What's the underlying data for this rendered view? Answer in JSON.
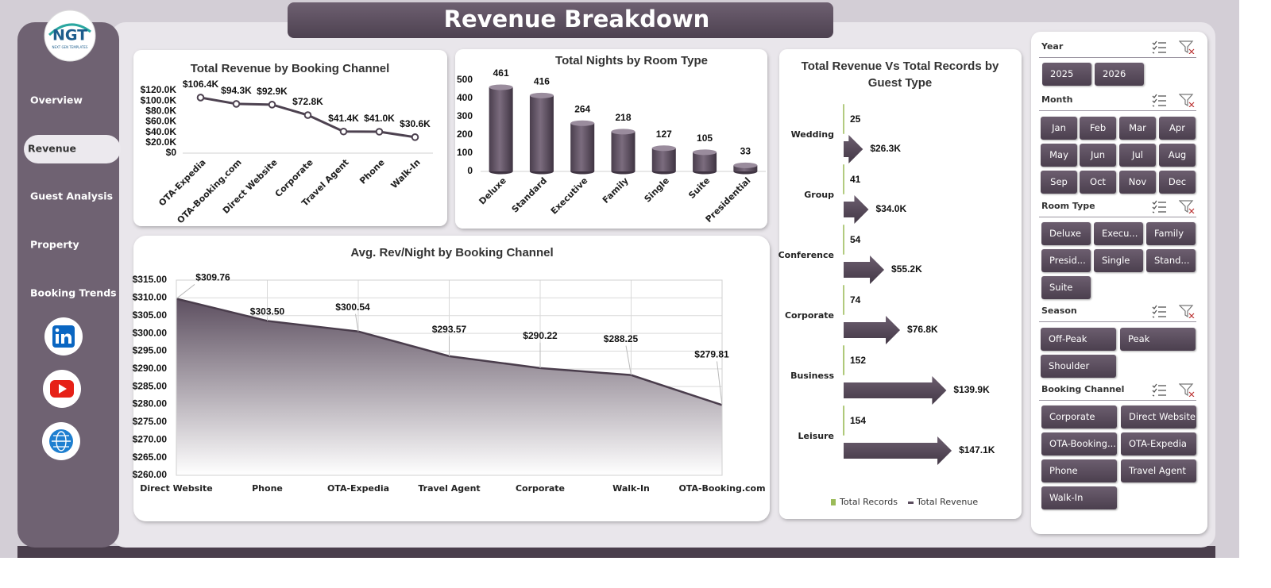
{
  "header": {
    "title": "Revenue Breakdown"
  },
  "logo": {
    "text": "NGT",
    "tagline": "NEXT GEN TEMPLATES"
  },
  "nav": [
    "Overview",
    "Revenue",
    "Guest Analysis",
    "Property",
    "Booking Trends"
  ],
  "chart_data": [
    {
      "type": "line",
      "title": "Total Revenue  by Booking Channel",
      "categories": [
        "OTA-Expedia",
        "OTA-Booking.com",
        "Direct Website",
        "Corporate",
        "Travel Agent",
        "Phone",
        "Walk-In"
      ],
      "values": [
        106400,
        94300,
        92900,
        72800,
        41400,
        41000,
        30600
      ],
      "value_labels": [
        "$106.4K",
        "$94.3K",
        "$92.9K",
        "$72.8K",
        "$41.4K",
        "$41.0K",
        "$30.6K"
      ],
      "color": "#4d4250",
      "ylim": [
        0,
        120000
      ],
      "yticks": [
        {
          "value": 0,
          "label": "$0"
        },
        {
          "value": 20000,
          "label": "$20.0K"
        },
        {
          "value": 40000,
          "label": "$40.0K"
        },
        {
          "value": 60000,
          "label": "$60.0K"
        },
        {
          "value": 80000,
          "label": "$80.0K"
        },
        {
          "value": 100000,
          "label": "$100.0K"
        },
        {
          "value": 120000,
          "label": "$120.0K"
        }
      ]
    },
    {
      "type": "bar",
      "title": "Total Nights by Room Type",
      "categories": [
        "Deluxe",
        "Standard",
        "Executive",
        "Family",
        "Single",
        "Suite",
        "Presidential"
      ],
      "values": [
        461,
        416,
        264,
        218,
        127,
        105,
        33
      ],
      "color": "#5b4d5e",
      "ylim": [
        0,
        500
      ],
      "yticks": [
        0,
        100,
        200,
        300,
        400,
        500
      ]
    },
    {
      "type": "bar",
      "horizontal": true,
      "title": "Total Revenue Vs Total Records by Guest Type",
      "categories": [
        "Wedding",
        "Group",
        "Conference",
        "Corporate",
        "Business",
        "Leisure"
      ],
      "series": [
        {
          "name": "Total Records",
          "color": "#9bbb59",
          "values": [
            25,
            41,
            54,
            74,
            152,
            154
          ]
        },
        {
          "name": "Total Revenue",
          "color": "#5b4d5e",
          "values": [
            26300,
            34000,
            55200,
            76800,
            139900,
            147100
          ],
          "value_labels": [
            "$26.3K",
            "$34.0K",
            "$55.2K",
            "$76.8K",
            "$139.9K",
            "$147.1K"
          ]
        }
      ],
      "xlim": [
        0,
        160000
      ],
      "legend": "bottom"
    },
    {
      "type": "area",
      "title": "Avg. Rev/Night by Booking Channel",
      "categories": [
        "Direct Website",
        "Phone",
        "OTA-Expedia",
        "Travel Agent",
        "Corporate",
        "Walk-In",
        "OTA-Booking.com"
      ],
      "values": [
        309.76,
        303.5,
        300.54,
        293.57,
        290.22,
        288.25,
        279.81
      ],
      "value_labels": [
        "$309.76",
        "$303.50",
        "$300.54",
        "$293.57",
        "$290.22",
        "$288.25",
        "$279.81"
      ],
      "color": "#4a3d4c",
      "ylim": [
        260,
        315
      ],
      "yticks": [
        {
          "value": 260,
          "label": "$260.00"
        },
        {
          "value": 265,
          "label": "$265.00"
        },
        {
          "value": 270,
          "label": "$270.00"
        },
        {
          "value": 275,
          "label": "$275.00"
        },
        {
          "value": 280,
          "label": "$280.00"
        },
        {
          "value": 285,
          "label": "$285.00"
        },
        {
          "value": 290,
          "label": "$290.00"
        },
        {
          "value": 295,
          "label": "$295.00"
        },
        {
          "value": 300,
          "label": "$300.00"
        },
        {
          "value": 305,
          "label": "$305.00"
        },
        {
          "value": 310,
          "label": "$310.00"
        },
        {
          "value": 315,
          "label": "$315.00"
        }
      ],
      "grid": true
    }
  ],
  "slicers": [
    {
      "title": "Year",
      "items": [
        "2025",
        "2026"
      ]
    },
    {
      "title": "Month",
      "items": [
        "Jan",
        "Feb",
        "Mar",
        "Apr",
        "May",
        "Jun",
        "Jul",
        "Aug",
        "Sep",
        "Oct",
        "Nov",
        "Dec"
      ]
    },
    {
      "title": "Room Type",
      "items": [
        "Deluxe",
        "Execu...",
        "Family",
        "Presid...",
        "Single",
        "Stand...",
        "Suite"
      ]
    },
    {
      "title": "Season",
      "items": [
        "Off-Peak",
        "Peak",
        "Shoulder"
      ]
    },
    {
      "title": "Booking Channel",
      "items": [
        "Corporate",
        "Direct Website",
        "OTA-Booking....",
        "OTA-Expedia",
        "Phone",
        "Travel Agent",
        "Walk-In"
      ]
    }
  ]
}
